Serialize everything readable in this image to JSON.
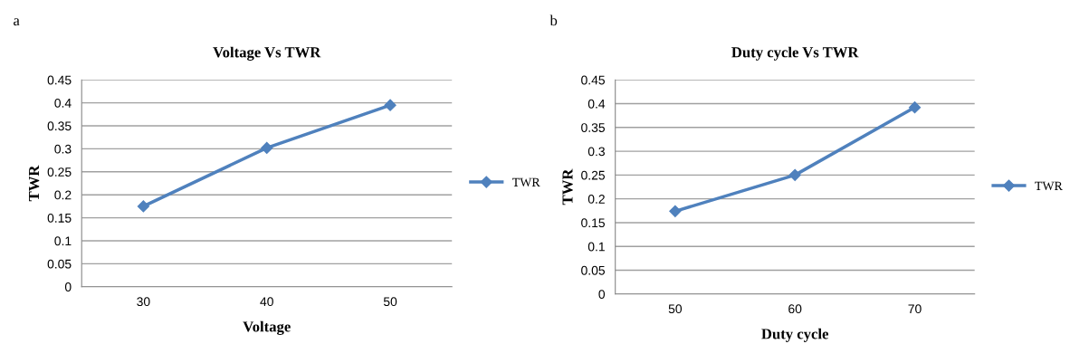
{
  "chart_data": [
    {
      "type": "line",
      "title": "Voltage Vs TWR",
      "xlabel": "Voltage",
      "ylabel": "TWR",
      "annotations": [
        "a"
      ],
      "categories": [
        "30",
        "40",
        "50"
      ],
      "series": [
        {
          "name": "TWR",
          "color": "#4f81bd",
          "values": [
            0.175,
            0.302,
            0.395
          ]
        }
      ],
      "ylim": [
        0,
        0.45
      ],
      "yticks": [
        0,
        0.05,
        0.1,
        0.15,
        0.2,
        0.25,
        0.3,
        0.35,
        0.4,
        0.45
      ],
      "grid": "y",
      "legend": "right",
      "marker": "diamond",
      "line_style": "solid"
    },
    {
      "type": "line",
      "title": "Duty cycle Vs TWR",
      "xlabel": "Duty cycle",
      "ylabel": "TWR",
      "annotations": [
        "b"
      ],
      "categories": [
        "50",
        "60",
        "70"
      ],
      "series": [
        {
          "name": "TWR",
          "color": "#4f81bd",
          "values": [
            0.174,
            0.25,
            0.392
          ]
        }
      ],
      "ylim": [
        0,
        0.45
      ],
      "yticks": [
        0,
        0.05,
        0.1,
        0.15,
        0.2,
        0.25,
        0.3,
        0.35,
        0.4,
        0.45
      ],
      "grid": "y",
      "legend": "right",
      "marker": "diamond",
      "line_style": "solid"
    }
  ]
}
